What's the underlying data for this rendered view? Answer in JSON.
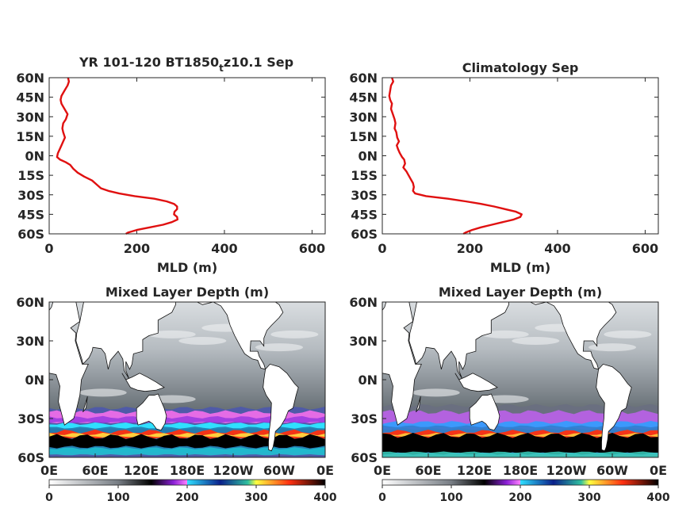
{
  "colors": {
    "profile_line": "#e01010",
    "axis": "#262626",
    "land": "#ffffff",
    "colorbar_stops": [
      [
        0,
        "#ffffff"
      ],
      [
        0.25,
        "#777d84"
      ],
      [
        0.37,
        "#000000"
      ],
      [
        0.45,
        "#8a1fd6"
      ],
      [
        0.5,
        "#ff80ff"
      ],
      [
        0.5,
        "#2fe0ff"
      ],
      [
        0.62,
        "#0a1f8a"
      ],
      [
        0.72,
        "#30c0a0"
      ],
      [
        0.75,
        "#ffff40"
      ],
      [
        0.87,
        "#ff3010"
      ],
      [
        1.0,
        "#000000"
      ]
    ]
  },
  "chart_data": [
    {
      "type": "line",
      "title": "YR 101-120 BT1850",
      "title_sub": "t",
      "title_tail": "z10.1 Sep",
      "xlabel": "MLD (m)",
      "ylabel": "",
      "xlim": [
        0,
        630
      ],
      "ylim": [
        -60,
        60
      ],
      "xticks": [
        "0",
        "200",
        "400",
        "600"
      ],
      "xtick_values": [
        0,
        200,
        400,
        600
      ],
      "yticks": [
        "60N",
        "45N",
        "30N",
        "15N",
        "0N",
        "15S",
        "30S",
        "45S",
        "60S"
      ],
      "ytick_values": [
        60,
        45,
        30,
        15,
        0,
        -15,
        -30,
        -45,
        -60
      ],
      "series": [
        {
          "lat": [
            60,
            57,
            54,
            50,
            46,
            43,
            40,
            36,
            32,
            28,
            25,
            21,
            18,
            14,
            11,
            8,
            5,
            2,
            -1,
            -3,
            -5,
            -7,
            -10,
            -13,
            -16,
            -19,
            -22,
            -25,
            -27,
            -29,
            -31,
            -33,
            -35,
            -37,
            -39,
            -41,
            -43,
            -45,
            -47,
            -49,
            -51,
            -53,
            -55,
            -57,
            -59,
            -60
          ],
          "mld": [
            43,
            45,
            42,
            35,
            28,
            26,
            28,
            35,
            42,
            38,
            32,
            30,
            32,
            36,
            32,
            28,
            24,
            20,
            18,
            25,
            38,
            48,
            55,
            65,
            80,
            98,
            108,
            118,
            135,
            160,
            195,
            240,
            268,
            285,
            292,
            292,
            286,
            285,
            292,
            293,
            280,
            260,
            230,
            200,
            180,
            175
          ]
        }
      ]
    },
    {
      "type": "line",
      "title": "Climatology Sep",
      "xlabel": "MLD (m)",
      "ylabel": "",
      "xlim": [
        0,
        630
      ],
      "ylim": [
        -60,
        60
      ],
      "xticks": [
        "0",
        "200",
        "400",
        "600"
      ],
      "xtick_values": [
        0,
        200,
        400,
        600
      ],
      "yticks": [
        "60N",
        "45N",
        "30N",
        "15N",
        "0N",
        "15S",
        "30S",
        "45S",
        "60S"
      ],
      "ytick_values": [
        60,
        45,
        30,
        15,
        0,
        -15,
        -30,
        -45,
        -60
      ],
      "series": [
        {
          "lat": [
            60,
            57,
            54,
            50,
            46,
            43,
            40,
            36,
            32,
            28,
            25,
            21,
            18,
            14,
            11,
            8,
            5,
            2,
            -1,
            -3,
            -6,
            -9,
            -12,
            -15,
            -18,
            -21,
            -24,
            -27,
            -29,
            -31,
            -33,
            -35,
            -37,
            -39,
            -41,
            -43,
            -45,
            -47,
            -49,
            -51,
            -53,
            -55,
            -57,
            -59,
            -60
          ],
          "mld": [
            22,
            25,
            20,
            18,
            16,
            18,
            22,
            20,
            24,
            28,
            30,
            28,
            32,
            34,
            38,
            33,
            36,
            40,
            45,
            50,
            52,
            48,
            55,
            60,
            65,
            70,
            72,
            70,
            75,
            100,
            150,
            190,
            225,
            255,
            280,
            305,
            318,
            315,
            300,
            275,
            250,
            225,
            205,
            190,
            185
          ]
        }
      ]
    },
    {
      "type": "heatmap",
      "title": "Mixed Layer Depth (m)",
      "xticks": [
        "0E",
        "60E",
        "120E",
        "180E",
        "120W",
        "60W",
        "0E"
      ],
      "yticks": [
        "60N",
        "30N",
        "0N",
        "30S",
        "60S"
      ],
      "colorbar_ticks": [
        "0",
        "100",
        "200",
        "300",
        "400"
      ],
      "colorbar_range": [
        0,
        400
      ]
    },
    {
      "type": "heatmap",
      "title": "Mixed Layer Depth (m)",
      "xticks": [
        "0E",
        "60E",
        "120E",
        "180E",
        "120W",
        "60W",
        "0E"
      ],
      "yticks": [
        "60N",
        "30N",
        "0N",
        "30S",
        "60S"
      ],
      "colorbar_ticks": [
        "0",
        "100",
        "200",
        "300",
        "400"
      ],
      "colorbar_range": [
        0,
        400
      ]
    }
  ]
}
